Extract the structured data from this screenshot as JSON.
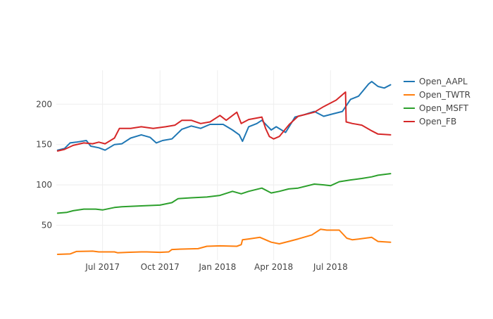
{
  "chart_data": {
    "type": "line",
    "title": "",
    "xlabel": "",
    "ylabel": "",
    "grid": true,
    "legend_position": "top-right",
    "x_ticks": [
      {
        "date": "2017-07-01",
        "label": "Jul 2017"
      },
      {
        "date": "2017-10-01",
        "label": "Oct 2017"
      },
      {
        "date": "2018-01-01",
        "label": "Jan 2018"
      },
      {
        "date": "2018-04-01",
        "label": "Apr 2018"
      },
      {
        "date": "2018-07-01",
        "label": "Jul 2018"
      }
    ],
    "xlim": [
      "2017-04-18",
      "2018-10-09"
    ],
    "y_ticks": [
      50,
      100,
      150,
      200
    ],
    "ylim": [
      7,
      242
    ],
    "series": [
      {
        "name": "Open_AAPL",
        "color": "#1f77b4",
        "points": [
          [
            "2017-04-20",
            143
          ],
          [
            "2017-05-01",
            145
          ],
          [
            "2017-05-10",
            152
          ],
          [
            "2017-05-20",
            153
          ],
          [
            "2017-06-05",
            155
          ],
          [
            "2017-06-12",
            148
          ],
          [
            "2017-06-25",
            146
          ],
          [
            "2017-07-05",
            143
          ],
          [
            "2017-07-20",
            150
          ],
          [
            "2017-08-01",
            151
          ],
          [
            "2017-08-15",
            158
          ],
          [
            "2017-09-01",
            162
          ],
          [
            "2017-09-15",
            159
          ],
          [
            "2017-09-25",
            152
          ],
          [
            "2017-10-05",
            155
          ],
          [
            "2017-10-20",
            157
          ],
          [
            "2017-11-05",
            169
          ],
          [
            "2017-11-20",
            173
          ],
          [
            "2017-12-05",
            170
          ],
          [
            "2017-12-20",
            175
          ],
          [
            "2018-01-10",
            175
          ],
          [
            "2018-01-25",
            168
          ],
          [
            "2018-02-05",
            162
          ],
          [
            "2018-02-10",
            154
          ],
          [
            "2018-02-20",
            172
          ],
          [
            "2018-03-05",
            176
          ],
          [
            "2018-03-13",
            180
          ],
          [
            "2018-03-28",
            168
          ],
          [
            "2018-04-05",
            172
          ],
          [
            "2018-04-20",
            165
          ],
          [
            "2018-04-28",
            175
          ],
          [
            "2018-05-05",
            184
          ],
          [
            "2018-05-20",
            187
          ],
          [
            "2018-06-05",
            191
          ],
          [
            "2018-06-20",
            185
          ],
          [
            "2018-07-05",
            188
          ],
          [
            "2018-07-20",
            191
          ],
          [
            "2018-08-02",
            206
          ],
          [
            "2018-08-15",
            210
          ],
          [
            "2018-08-31",
            225
          ],
          [
            "2018-09-05",
            228
          ],
          [
            "2018-09-15",
            222
          ],
          [
            "2018-09-25",
            220
          ],
          [
            "2018-10-05",
            224
          ]
        ]
      },
      {
        "name": "Open_TWTR",
        "color": "#ff7f0e",
        "points": [
          [
            "2017-04-20",
            14
          ],
          [
            "2017-05-10",
            14.5
          ],
          [
            "2017-05-20",
            17.5
          ],
          [
            "2017-06-15",
            18
          ],
          [
            "2017-06-25",
            17
          ],
          [
            "2017-07-20",
            17
          ],
          [
            "2017-07-25",
            16
          ],
          [
            "2017-08-10",
            16.5
          ],
          [
            "2017-09-01",
            17
          ],
          [
            "2017-09-10",
            17
          ],
          [
            "2017-10-01",
            16.5
          ],
          [
            "2017-10-15",
            17
          ],
          [
            "2017-10-20",
            20
          ],
          [
            "2017-11-05",
            20.5
          ],
          [
            "2017-12-01",
            21
          ],
          [
            "2017-12-15",
            24
          ],
          [
            "2018-01-05",
            24.5
          ],
          [
            "2018-02-01",
            24
          ],
          [
            "2018-02-08",
            26
          ],
          [
            "2018-02-10",
            32
          ],
          [
            "2018-02-20",
            33
          ],
          [
            "2018-03-10",
            35
          ],
          [
            "2018-03-28",
            29
          ],
          [
            "2018-04-10",
            27
          ],
          [
            "2018-04-25",
            30
          ],
          [
            "2018-05-10",
            33
          ],
          [
            "2018-06-01",
            38
          ],
          [
            "2018-06-15",
            45
          ],
          [
            "2018-06-25",
            44
          ],
          [
            "2018-07-15",
            44
          ],
          [
            "2018-07-27",
            34
          ],
          [
            "2018-08-05",
            32
          ],
          [
            "2018-09-05",
            35
          ],
          [
            "2018-09-15",
            30
          ],
          [
            "2018-10-05",
            29
          ]
        ]
      },
      {
        "name": "Open_MSFT",
        "color": "#2ca02c",
        "points": [
          [
            "2017-04-20",
            65
          ],
          [
            "2017-05-05",
            66
          ],
          [
            "2017-05-15",
            68
          ],
          [
            "2017-06-01",
            70
          ],
          [
            "2017-06-20",
            70
          ],
          [
            "2017-07-01",
            69
          ],
          [
            "2017-07-20",
            72
          ],
          [
            "2017-08-01",
            73
          ],
          [
            "2017-09-01",
            74
          ],
          [
            "2017-10-01",
            75
          ],
          [
            "2017-10-20",
            78
          ],
          [
            "2017-10-30",
            83
          ],
          [
            "2017-11-20",
            84
          ],
          [
            "2017-12-15",
            85
          ],
          [
            "2018-01-05",
            87
          ],
          [
            "2018-01-25",
            92
          ],
          [
            "2018-02-08",
            89
          ],
          [
            "2018-02-20",
            92
          ],
          [
            "2018-03-13",
            96
          ],
          [
            "2018-03-28",
            90
          ],
          [
            "2018-04-10",
            92
          ],
          [
            "2018-04-25",
            95
          ],
          [
            "2018-05-10",
            96
          ],
          [
            "2018-06-05",
            101
          ],
          [
            "2018-06-20",
            100
          ],
          [
            "2018-07-01",
            99
          ],
          [
            "2018-07-15",
            104
          ],
          [
            "2018-08-01",
            106
          ],
          [
            "2018-08-20",
            108
          ],
          [
            "2018-09-05",
            110
          ],
          [
            "2018-09-15",
            112
          ],
          [
            "2018-10-05",
            114
          ]
        ]
      },
      {
        "name": "Open_FB",
        "color": "#d62728",
        "points": [
          [
            "2017-04-20",
            142
          ],
          [
            "2017-05-01",
            144
          ],
          [
            "2017-05-15",
            149
          ],
          [
            "2017-06-01",
            152
          ],
          [
            "2017-06-15",
            151
          ],
          [
            "2017-06-25",
            153
          ],
          [
            "2017-07-05",
            151
          ],
          [
            "2017-07-20",
            158
          ],
          [
            "2017-07-28",
            170
          ],
          [
            "2017-08-15",
            170
          ],
          [
            "2017-09-01",
            172
          ],
          [
            "2017-09-20",
            170
          ],
          [
            "2017-10-10",
            172
          ],
          [
            "2017-10-25",
            174
          ],
          [
            "2017-11-05",
            180
          ],
          [
            "2017-11-20",
            180
          ],
          [
            "2017-12-05",
            176
          ],
          [
            "2017-12-20",
            178
          ],
          [
            "2018-01-05",
            186
          ],
          [
            "2018-01-15",
            180
          ],
          [
            "2018-02-01",
            190
          ],
          [
            "2018-02-08",
            176
          ],
          [
            "2018-02-20",
            181
          ],
          [
            "2018-03-13",
            184
          ],
          [
            "2018-03-19",
            170
          ],
          [
            "2018-03-25",
            160
          ],
          [
            "2018-04-01",
            157
          ],
          [
            "2018-04-10",
            160
          ],
          [
            "2018-04-26",
            175
          ],
          [
            "2018-05-10",
            185
          ],
          [
            "2018-06-05",
            190
          ],
          [
            "2018-06-20",
            197
          ],
          [
            "2018-07-10",
            205
          ],
          [
            "2018-07-25",
            215
          ],
          [
            "2018-07-26",
            178
          ],
          [
            "2018-08-05",
            176
          ],
          [
            "2018-08-20",
            174
          ],
          [
            "2018-09-05",
            167
          ],
          [
            "2018-09-15",
            163
          ],
          [
            "2018-10-05",
            162
          ]
        ]
      }
    ]
  }
}
